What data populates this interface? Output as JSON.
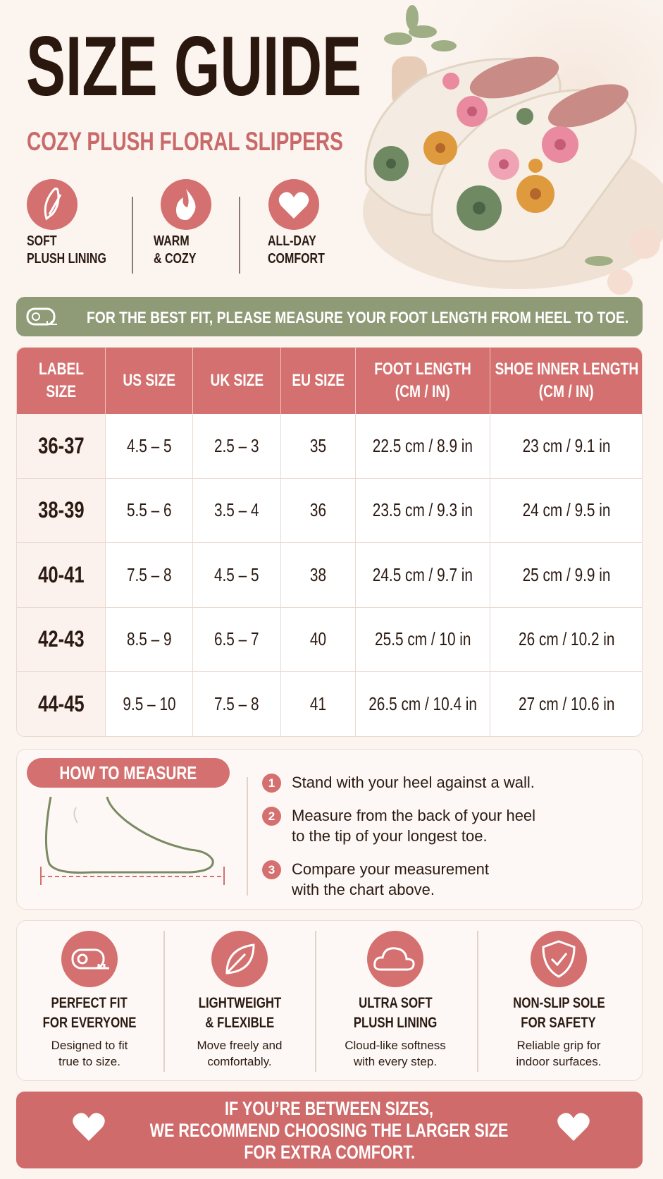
{
  "header": {
    "title": "SIZE GUIDE",
    "subtitle": "COZY PLUSH FLORAL SLIPPERS"
  },
  "highlights": [
    {
      "lines": [
        "SOFT",
        "PLUSH LINING"
      ]
    },
    {
      "lines": [
        "WARM",
        "& COZY"
      ]
    },
    {
      "lines": [
        "ALL-DAY",
        "COMFORT"
      ]
    }
  ],
  "fit_note": "FOR THE BEST FIT, PLEASE MEASURE YOUR FOOT LENGTH FROM HEEL TO TOE.",
  "table": {
    "headers": [
      [
        "LABEL",
        "SIZE"
      ],
      [
        "US SIZE"
      ],
      [
        "UK SIZE"
      ],
      [
        "EU SIZE"
      ],
      [
        "FOOT LENGTH",
        "(CM / IN)"
      ],
      [
        "SHOE INNER LENGTH",
        "(CM / IN)"
      ]
    ],
    "rows": [
      [
        "36-37",
        "4.5 – 5",
        "2.5 – 3",
        "35",
        "22.5 cm / 8.9 in",
        "23 cm / 9.1 in"
      ],
      [
        "38-39",
        "5.5 – 6",
        "3.5 – 4",
        "36",
        "23.5 cm / 9.3 in",
        "24 cm / 9.5 in"
      ],
      [
        "40-41",
        "7.5 – 8",
        "4.5 – 5",
        "38",
        "24.5 cm / 9.7 in",
        "25 cm / 9.9 in"
      ],
      [
        "42-43",
        "8.5 – 9",
        "6.5 – 7",
        "40",
        "25.5 cm / 10 in",
        "26 cm / 10.2 in"
      ],
      [
        "44-45",
        "9.5 – 10",
        "7.5 – 8",
        "41",
        "26.5 cm / 10.4 in",
        "27 cm / 10.6 in"
      ]
    ]
  },
  "how_to_measure": {
    "title": "HOW TO MEASURE",
    "steps": [
      {
        "number": "1",
        "lines": [
          "Stand with your heel against a wall."
        ]
      },
      {
        "number": "2",
        "lines": [
          "Measure from the back of your heel",
          "to the tip of your longest toe."
        ]
      },
      {
        "number": "3",
        "lines": [
          "Compare your measurement",
          "with the chart above."
        ]
      }
    ]
  },
  "features": [
    {
      "title": [
        "PERFECT FIT",
        "FOR EVERYONE"
      ],
      "text": [
        "Designed to fit",
        "true to size."
      ]
    },
    {
      "title": [
        "LIGHTWEIGHT",
        "& FLEXIBLE"
      ],
      "text": [
        "Move freely and",
        "comfortably."
      ]
    },
    {
      "title": [
        "ULTRA SOFT",
        "PLUSH LINING"
      ],
      "text": [
        "Cloud-like softness",
        "with every step."
      ]
    },
    {
      "title": [
        "NON-SLIP SOLE",
        "FOR SAFETY"
      ],
      "text": [
        "Reliable grip for",
        "indoor surfaces."
      ]
    }
  ],
  "banner": [
    "IF YOU’RE BETWEEN SIZES,",
    "WE RECOMMEND CHOOSING THE LARGER SIZE",
    "FOR EXTRA COMFORT."
  ]
}
